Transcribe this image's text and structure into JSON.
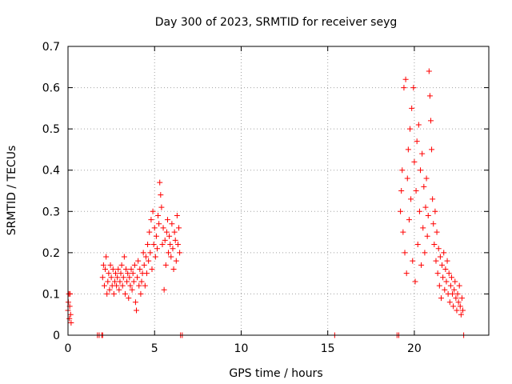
{
  "chart_data": {
    "type": "scatter",
    "title": "Day 300 of 2023, SRMTID for receiver seyg",
    "xlabel": "GPS time / hours",
    "ylabel": "SRMTID / TECUs",
    "xlim": [
      0,
      24.3
    ],
    "ylim": [
      0,
      0.7
    ],
    "x_ticks": [
      0,
      5,
      10,
      15,
      20
    ],
    "y_ticks": [
      0,
      0.1,
      0.2,
      0.3,
      0.4,
      0.5,
      0.6,
      0.7
    ],
    "grid": true,
    "marker": "+",
    "color": "#ff0000",
    "series": [
      {
        "name": "SRMTID",
        "points": [
          [
            0.0,
            0.06
          ],
          [
            0.02,
            0.08
          ],
          [
            0.05,
            0.1
          ],
          [
            0.08,
            0.04
          ],
          [
            0.1,
            0.07
          ],
          [
            0.12,
            0.1
          ],
          [
            0.15,
            0.05
          ],
          [
            0.18,
            0.03
          ],
          [
            1.7,
            0.0
          ],
          [
            1.8,
            0.0
          ],
          [
            1.95,
            0.0
          ],
          [
            2.0,
            0.0
          ],
          [
            2.0,
            0.14
          ],
          [
            2.05,
            0.17
          ],
          [
            2.1,
            0.12
          ],
          [
            2.15,
            0.16
          ],
          [
            2.2,
            0.19
          ],
          [
            2.25,
            0.1
          ],
          [
            2.3,
            0.13
          ],
          [
            2.35,
            0.15
          ],
          [
            2.4,
            0.11
          ],
          [
            2.45,
            0.17
          ],
          [
            2.5,
            0.14
          ],
          [
            2.55,
            0.12
          ],
          [
            2.6,
            0.16
          ],
          [
            2.65,
            0.1
          ],
          [
            2.7,
            0.13
          ],
          [
            2.75,
            0.15
          ],
          [
            2.8,
            0.12
          ],
          [
            2.85,
            0.14
          ],
          [
            2.9,
            0.16
          ],
          [
            2.95,
            0.11
          ],
          [
            3.0,
            0.13
          ],
          [
            3.05,
            0.15
          ],
          [
            3.1,
            0.17
          ],
          [
            3.15,
            0.12
          ],
          [
            3.2,
            0.14
          ],
          [
            3.25,
            0.19
          ],
          [
            3.3,
            0.1
          ],
          [
            3.35,
            0.16
          ],
          [
            3.4,
            0.13
          ],
          [
            3.45,
            0.15
          ],
          [
            3.5,
            0.09
          ],
          [
            3.55,
            0.14
          ],
          [
            3.6,
            0.12
          ],
          [
            3.65,
            0.16
          ],
          [
            3.7,
            0.11
          ],
          [
            3.75,
            0.15
          ],
          [
            3.8,
            0.13
          ],
          [
            3.85,
            0.17
          ],
          [
            3.9,
            0.08
          ],
          [
            3.95,
            0.06
          ],
          [
            4.0,
            0.14
          ],
          [
            4.05,
            0.18
          ],
          [
            4.1,
            0.12
          ],
          [
            4.15,
            0.16
          ],
          [
            4.2,
            0.1
          ],
          [
            4.25,
            0.13
          ],
          [
            4.3,
            0.15
          ],
          [
            4.35,
            0.2
          ],
          [
            4.4,
            0.17
          ],
          [
            4.45,
            0.12
          ],
          [
            4.5,
            0.19
          ],
          [
            4.55,
            0.15
          ],
          [
            4.6,
            0.22
          ],
          [
            4.65,
            0.18
          ],
          [
            4.7,
            0.25
          ],
          [
            4.75,
            0.2
          ],
          [
            4.8,
            0.28
          ],
          [
            4.85,
            0.16
          ],
          [
            4.9,
            0.3
          ],
          [
            4.95,
            0.22
          ],
          [
            5.0,
            0.26
          ],
          [
            5.05,
            0.19
          ],
          [
            5.1,
            0.24
          ],
          [
            5.15,
            0.21
          ],
          [
            5.2,
            0.29
          ],
          [
            5.25,
            0.27
          ],
          [
            5.3,
            0.37
          ],
          [
            5.35,
            0.34
          ],
          [
            5.4,
            0.31
          ],
          [
            5.45,
            0.22
          ],
          [
            5.5,
            0.26
          ],
          [
            5.55,
            0.11
          ],
          [
            5.6,
            0.23
          ],
          [
            5.65,
            0.17
          ],
          [
            5.7,
            0.25
          ],
          [
            5.75,
            0.28
          ],
          [
            5.8,
            0.2
          ],
          [
            5.85,
            0.24
          ],
          [
            5.9,
            0.22
          ],
          [
            5.95,
            0.19
          ],
          [
            6.0,
            0.27
          ],
          [
            6.05,
            0.21
          ],
          [
            6.1,
            0.16
          ],
          [
            6.15,
            0.25
          ],
          [
            6.2,
            0.23
          ],
          [
            6.25,
            0.18
          ],
          [
            6.3,
            0.29
          ],
          [
            6.35,
            0.22
          ],
          [
            6.4,
            0.26
          ],
          [
            6.45,
            0.2
          ],
          [
            6.5,
            0.0
          ],
          [
            6.6,
            0.0
          ],
          [
            15.4,
            0.0
          ],
          [
            19.0,
            0.0
          ],
          [
            19.1,
            0.0
          ],
          [
            19.2,
            0.3
          ],
          [
            19.25,
            0.35
          ],
          [
            19.3,
            0.4
          ],
          [
            19.35,
            0.25
          ],
          [
            19.4,
            0.6
          ],
          [
            19.45,
            0.2
          ],
          [
            19.5,
            0.62
          ],
          [
            19.55,
            0.15
          ],
          [
            19.6,
            0.38
          ],
          [
            19.65,
            0.45
          ],
          [
            19.7,
            0.28
          ],
          [
            19.75,
            0.5
          ],
          [
            19.8,
            0.33
          ],
          [
            19.85,
            0.55
          ],
          [
            19.9,
            0.18
          ],
          [
            19.95,
            0.6
          ],
          [
            20.0,
            0.42
          ],
          [
            20.05,
            0.13
          ],
          [
            20.1,
            0.35
          ],
          [
            20.15,
            0.47
          ],
          [
            20.2,
            0.22
          ],
          [
            20.25,
            0.51
          ],
          [
            20.3,
            0.3
          ],
          [
            20.35,
            0.4
          ],
          [
            20.4,
            0.17
          ],
          [
            20.45,
            0.44
          ],
          [
            20.5,
            0.26
          ],
          [
            20.55,
            0.36
          ],
          [
            20.6,
            0.2
          ],
          [
            20.65,
            0.31
          ],
          [
            20.7,
            0.38
          ],
          [
            20.75,
            0.24
          ],
          [
            20.8,
            0.29
          ],
          [
            20.85,
            0.64
          ],
          [
            20.9,
            0.58
          ],
          [
            20.95,
            0.52
          ],
          [
            21.0,
            0.45
          ],
          [
            21.05,
            0.33
          ],
          [
            21.1,
            0.27
          ],
          [
            21.15,
            0.22
          ],
          [
            21.2,
            0.3
          ],
          [
            21.25,
            0.18
          ],
          [
            21.3,
            0.25
          ],
          [
            21.35,
            0.15
          ],
          [
            21.4,
            0.21
          ],
          [
            21.45,
            0.12
          ],
          [
            21.5,
            0.19
          ],
          [
            21.55,
            0.09
          ],
          [
            21.6,
            0.17
          ],
          [
            21.65,
            0.14
          ],
          [
            21.7,
            0.2
          ],
          [
            21.75,
            0.11
          ],
          [
            21.8,
            0.16
          ],
          [
            21.85,
            0.13
          ],
          [
            21.9,
            0.18
          ],
          [
            21.95,
            0.1
          ],
          [
            22.0,
            0.15
          ],
          [
            22.05,
            0.08
          ],
          [
            22.1,
            0.12
          ],
          [
            22.15,
            0.14
          ],
          [
            22.2,
            0.1
          ],
          [
            22.25,
            0.07
          ],
          [
            22.3,
            0.11
          ],
          [
            22.35,
            0.13
          ],
          [
            22.4,
            0.09
          ],
          [
            22.45,
            0.06
          ],
          [
            22.5,
            0.1
          ],
          [
            22.55,
            0.08
          ],
          [
            22.6,
            0.12
          ],
          [
            22.65,
            0.07
          ],
          [
            22.7,
            0.05
          ],
          [
            22.75,
            0.09
          ],
          [
            22.8,
            0.06
          ],
          [
            22.85,
            0.0
          ]
        ]
      }
    ]
  }
}
